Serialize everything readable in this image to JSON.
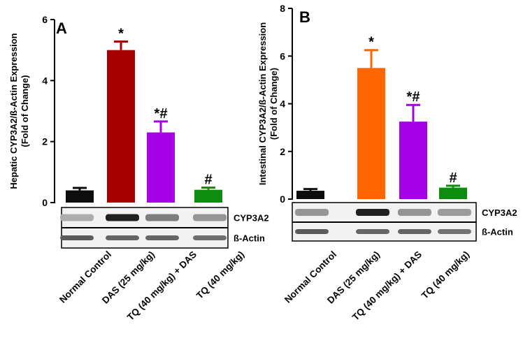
{
  "figure": {
    "panels": [
      {
        "letter": "A",
        "ylabel_line1": "Hepatic CYP3A2/ß-Actin Expression",
        "ylabel_line2": "(Fold of Change)",
        "blot_labels": [
          "CYP3A2",
          "ß-Actin"
        ],
        "band_intensity": {
          "CYP3A2": [
            0.35,
            0.95,
            0.55,
            0.45
          ],
          "ß-Actin": [
            0.7,
            0.65,
            0.65,
            0.62
          ]
        }
      },
      {
        "letter": "B",
        "ylabel_line1": "Intestinal CYP3A2/ß-Actin Expression",
        "ylabel_line2": "(Fold of Change)",
        "blot_labels": [
          "CYP3A2",
          "ß-Actin"
        ],
        "band_intensity": {
          "CYP3A2": [
            0.45,
            0.95,
            0.45,
            0.42
          ],
          "ß-Actin": [
            0.7,
            0.65,
            0.65,
            0.6
          ]
        }
      }
    ]
  },
  "chart_data": [
    {
      "type": "bar",
      "panel": "A",
      "title": "",
      "xlabel": "",
      "ylabel": "Hepatic CYP3A2/ß-Actin Expression (Fold of Change)",
      "categories": [
        "Normal Control",
        "DAS (25 mg/kg)",
        "TQ (40 mg/kg) + DAS",
        "TQ (40 mg/kg)"
      ],
      "values": [
        0.4,
        5.0,
        2.3,
        0.42
      ],
      "errors": [
        0.08,
        0.28,
        0.36,
        0.07
      ],
      "annotations": [
        "",
        "*",
        "*#",
        "#"
      ],
      "colors": [
        "#0d0d0d",
        "#a80000",
        "#a500e6",
        "#0e8c0e"
      ],
      "ylim": [
        0,
        6
      ],
      "yticks": [
        0,
        2,
        4,
        6
      ]
    },
    {
      "type": "bar",
      "panel": "B",
      "title": "",
      "xlabel": "",
      "ylabel": "Intestinal CYP3A2/ß-Actin Expression (Fold of Change)",
      "categories": [
        "Normal Control",
        "DAS (25 mg/kg)",
        "TQ (40 mg/kg) + DAS",
        "TQ (40 mg/kg)"
      ],
      "values": [
        0.35,
        5.5,
        3.25,
        0.48
      ],
      "errors": [
        0.07,
        0.75,
        0.7,
        0.08
      ],
      "annotations": [
        "",
        "*",
        "*#",
        "#"
      ],
      "colors": [
        "#0d0d0d",
        "#ff6600",
        "#a500e6",
        "#0e8c0e"
      ],
      "ylim": [
        0,
        8
      ],
      "yticks": [
        0,
        2,
        4,
        6,
        8
      ]
    }
  ]
}
